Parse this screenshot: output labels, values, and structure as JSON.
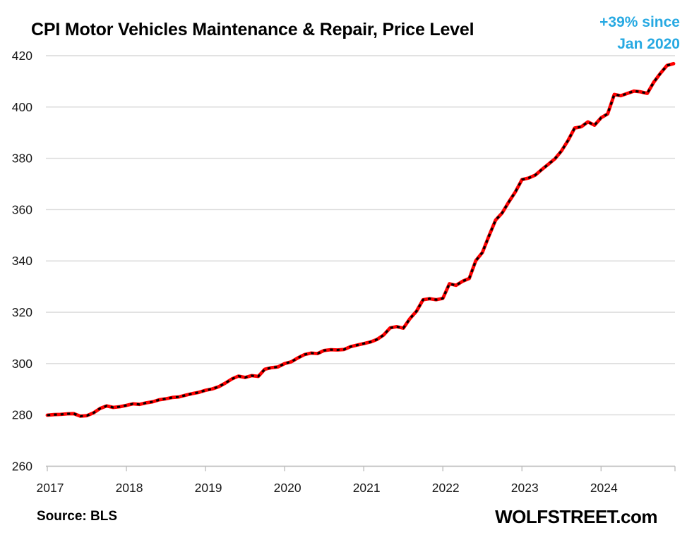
{
  "title": "CPI Motor Vehicles Maintenance & Repair, Price Level",
  "annotation": {
    "line1": "+39% since",
    "line2": "Jan 2020",
    "color": "#27A9E2"
  },
  "footer": {
    "source": "Source: BLS",
    "brand": "WOLFSTREET.com"
  },
  "chart_data": {
    "type": "line",
    "title": "CPI Motor Vehicles Maintenance & Repair, Price Level",
    "xlabel": "",
    "ylabel": "",
    "ylim": [
      260,
      420
    ],
    "y_tick_step": 20,
    "y_tick_labels": [
      "260",
      "280",
      "300",
      "320",
      "340",
      "360",
      "380",
      "400",
      "420"
    ],
    "x_tick_labels": [
      "2017",
      "2018",
      "2019",
      "2020",
      "2021",
      "2022",
      "2023",
      "2024"
    ],
    "grid": "horizontal",
    "legend": "none",
    "colors": {
      "line": "#FF0000",
      "dash_overlay": "#000000",
      "gridline": "#D9D9D9",
      "axis": "#BFBFBF",
      "tick_text": "#1a1a1a"
    },
    "series": [
      {
        "name": "CPI motor vehicle maintenance and repair, price level index, monthly",
        "start_month": "Jan 2017",
        "end_month": "Dec 2024",
        "frequency": "monthly",
        "values": [
          279.9,
          280.1,
          280.2,
          280.4,
          280.5,
          279.5,
          279.7,
          280.8,
          282.5,
          283.5,
          282.9,
          283.2,
          283.7,
          284.3,
          284.1,
          284.7,
          285.1,
          285.9,
          286.3,
          286.8,
          287.0,
          287.7,
          288.3,
          288.8,
          289.6,
          290.1,
          291.0,
          292.4,
          294.0,
          295.1,
          294.6,
          295.3,
          295.0,
          297.8,
          298.4,
          298.7,
          300.0,
          300.7,
          302.2,
          303.5,
          304.1,
          303.9,
          305.1,
          305.4,
          305.3,
          305.5,
          306.6,
          307.2,
          307.8,
          308.4,
          309.4,
          311.1,
          313.9,
          314.4,
          313.8,
          317.5,
          320.4,
          324.9,
          325.3,
          324.9,
          325.4,
          331.1,
          330.5,
          332.1,
          333.2,
          340.1,
          343.3,
          349.8,
          355.9,
          358.7,
          363.0,
          366.9,
          371.7,
          372.3,
          373.4,
          375.6,
          377.7,
          379.8,
          382.9,
          387.0,
          391.8,
          392.3,
          394.2,
          392.9,
          395.8,
          397.3,
          404.9,
          404.4,
          405.3,
          406.2,
          405.9,
          405.3,
          409.7,
          413.1,
          416.2,
          416.9
        ]
      }
    ]
  }
}
